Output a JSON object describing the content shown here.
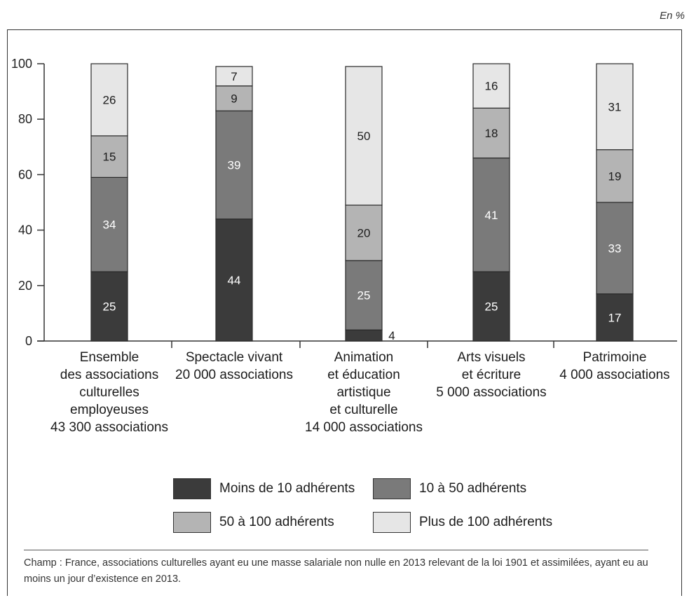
{
  "unit_label": "En %",
  "legend": [
    {
      "label": "Moins de 10 adhérents",
      "color": "#3b3b3b"
    },
    {
      "label": "10 à 50 adhérents",
      "color": "#7a7a7a"
    },
    {
      "label": "50 à 100 adhérents",
      "color": "#b4b4b4"
    },
    {
      "label": "Plus de 100 adhérents",
      "color": "#e6e6e6"
    }
  ],
  "footnote": "Champ : France, associations culturelles ayant eu une masse salariale non nulle en 2013 relevant de la loi 1901 et assimilées, ayant eu au moins un jour d’existence en 2013.",
  "chart_data": {
    "type": "bar",
    "stacked": true,
    "title": "",
    "xlabel": "",
    "ylabel": "",
    "ylim": [
      0,
      100
    ],
    "yticks": [
      0,
      20,
      40,
      60,
      80,
      100
    ],
    "categories": [
      [
        "Ensemble",
        "des associations",
        "culturelles",
        "employeuses",
        "43 300 associations"
      ],
      [
        "Spectacle vivant",
        "20 000 associations"
      ],
      [
        "Animation",
        "et éducation",
        "artistique",
        "et culturelle",
        "14 000 associations"
      ],
      [
        "Arts visuels",
        "et écriture",
        "5 000 associations"
      ],
      [
        "Patrimoine",
        "4 000 associations"
      ]
    ],
    "series": [
      {
        "name": "Moins de 10 adhérents",
        "color": "#3b3b3b",
        "label_color": "#ffffff",
        "values": [
          25,
          44,
          4,
          25,
          17
        ]
      },
      {
        "name": "10 à 50 adhérents",
        "color": "#7a7a7a",
        "label_color": "#ffffff",
        "values": [
          34,
          39,
          25,
          41,
          33
        ]
      },
      {
        "name": "50 à 100 adhérents",
        "color": "#b4b4b4",
        "label_color": "#1c1c1c",
        "values": [
          15,
          9,
          20,
          18,
          19
        ]
      },
      {
        "name": "Plus de 100 adhérents",
        "color": "#e6e6e6",
        "label_color": "#1c1c1c",
        "values": [
          26,
          7,
          50,
          16,
          31
        ]
      }
    ]
  }
}
